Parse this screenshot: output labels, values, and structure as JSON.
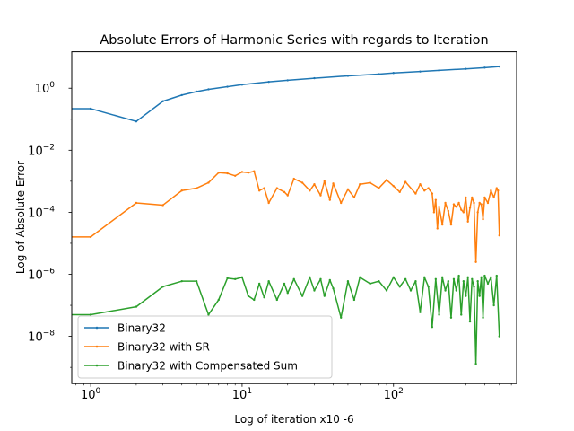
{
  "chart_data": {
    "type": "line",
    "title": "Absolute Errors of Harmonic Series with regards to Iteration",
    "xlabel": "Log of iteration x10 -6",
    "ylabel": "Log of Absolute Error",
    "xscale": "log",
    "yscale": "log",
    "xlim": [
      0.75,
      650
    ],
    "ylim": [
      3e-10,
      15
    ],
    "grid": false,
    "legend_position": "lower-left",
    "x_ticks": [
      {
        "base": "10",
        "exp": "0",
        "value": 1
      },
      {
        "base": "10",
        "exp": "1",
        "value": 10
      },
      {
        "base": "10",
        "exp": "2",
        "value": 100
      }
    ],
    "y_ticks": [
      {
        "base": "10",
        "exp": "0",
        "value": 1
      },
      {
        "base": "10",
        "exp": "−2",
        "value": 0.01
      },
      {
        "base": "10",
        "exp": "−4",
        "value": 0.0001
      },
      {
        "base": "10",
        "exp": "−6",
        "value": 1e-06
      },
      {
        "base": "10",
        "exp": "−8",
        "value": 1e-08
      }
    ],
    "series": [
      {
        "name": "Binary32",
        "color": "#1f77b4",
        "x": [
          0.6,
          1,
          2,
          3,
          4,
          5,
          6,
          8,
          10,
          15,
          20,
          30,
          50,
          80,
          100,
          150,
          200,
          300,
          400,
          500
        ],
        "y": [
          0.22,
          0.22,
          0.085,
          0.38,
          0.6,
          0.78,
          0.92,
          1.12,
          1.3,
          1.6,
          1.8,
          2.1,
          2.5,
          2.85,
          3.1,
          3.45,
          3.75,
          4.2,
          4.6,
          5.0
        ]
      },
      {
        "name": "Binary32 with SR",
        "color": "#ff7f0e",
        "x": [
          0.6,
          1,
          2,
          3,
          4,
          5,
          6,
          7,
          8,
          9,
          10,
          11,
          12,
          13,
          14,
          15,
          17,
          19,
          20,
          22,
          25,
          28,
          30,
          33,
          35,
          38,
          40,
          45,
          50,
          55,
          60,
          70,
          80,
          90,
          100,
          110,
          120,
          140,
          150,
          160,
          170,
          180,
          185,
          190,
          195,
          200,
          210,
          220,
          230,
          240,
          250,
          260,
          270,
          280,
          290,
          300,
          310,
          320,
          330,
          340,
          350,
          360,
          370,
          380,
          390,
          400,
          420,
          440,
          460,
          480,
          490,
          500
        ],
        "y": [
          1.6e-05,
          1.6e-05,
          0.0002,
          0.00017,
          0.0005,
          0.0006,
          0.0009,
          0.0019,
          0.0018,
          0.0015,
          0.002,
          0.0019,
          0.0021,
          0.0005,
          0.0006,
          0.0002,
          0.0006,
          0.00045,
          0.00035,
          0.0012,
          0.0009,
          0.0005,
          0.0008,
          0.00035,
          0.001,
          0.00025,
          0.00085,
          0.0002,
          0.00055,
          0.0003,
          0.0008,
          0.0009,
          0.0006,
          0.0011,
          0.0007,
          0.00045,
          0.00095,
          0.0004,
          0.0008,
          0.0005,
          0.0006,
          0.0004,
          0.0001,
          0.00025,
          3e-05,
          0.00015,
          4e-05,
          0.0002,
          0.00011,
          4e-05,
          0.00018,
          0.00015,
          0.0002,
          0.00012,
          0.0001,
          0.0003,
          5e-05,
          0.00014,
          0.0003,
          0.0002,
          2.5e-06,
          0.0001,
          0.0002,
          0.00018,
          6e-05,
          0.0003,
          0.0002,
          0.0005,
          0.0003,
          0.0006,
          0.0005,
          1.8e-05
        ]
      },
      {
        "name": "Binary32 with Compensated Sum",
        "color": "#2ca02c",
        "x": [
          0.6,
          1,
          2,
          3,
          4,
          5,
          6,
          7,
          8,
          9,
          10,
          11,
          12,
          13,
          14,
          15,
          17,
          19,
          20,
          22,
          25,
          28,
          30,
          33,
          35,
          38,
          40,
          45,
          50,
          55,
          60,
          70,
          80,
          90,
          100,
          110,
          120,
          130,
          140,
          150,
          160,
          170,
          180,
          190,
          200,
          210,
          220,
          230,
          240,
          250,
          260,
          270,
          280,
          290,
          300,
          310,
          320,
          330,
          340,
          350,
          360,
          370,
          380,
          390,
          400,
          420,
          440,
          460,
          480,
          500
        ],
        "y": [
          5e-08,
          5e-08,
          9e-08,
          4e-07,
          6e-07,
          6e-07,
          5e-08,
          1.5e-07,
          7.5e-07,
          7e-07,
          8e-07,
          2e-07,
          1.5e-07,
          5e-07,
          1.8e-07,
          6e-07,
          1.5e-07,
          5e-07,
          2.5e-07,
          7e-07,
          2e-07,
          8e-07,
          3e-07,
          7e-07,
          2e-07,
          6.5e-07,
          3.5e-07,
          4e-08,
          6e-07,
          1.5e-07,
          8e-07,
          5e-07,
          6e-07,
          3e-07,
          8e-07,
          4e-07,
          7e-07,
          3e-07,
          6e-07,
          6e-08,
          8e-07,
          4e-07,
          2e-08,
          7e-07,
          5e-08,
          8e-07,
          3e-07,
          6e-07,
          4e-08,
          7e-07,
          3e-07,
          9e-07,
          5e-08,
          6e-07,
          2e-07,
          8e-07,
          3e-08,
          7e-07,
          4e-07,
          1.3e-09,
          6e-07,
          2e-07,
          8e-07,
          4e-08,
          9e-07,
          5e-07,
          8e-07,
          1e-07,
          9e-07,
          1e-08
        ]
      }
    ]
  }
}
